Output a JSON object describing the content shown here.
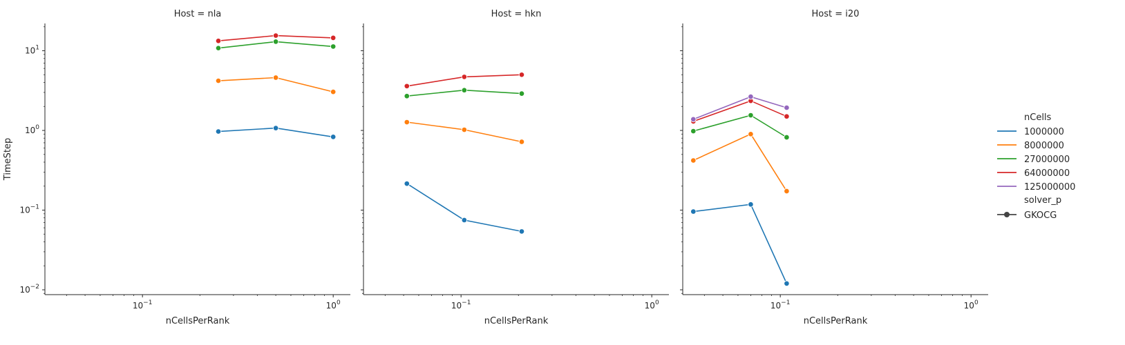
{
  "chart_data": {
    "type": "line",
    "x_scale": "log",
    "y_scale": "log",
    "xlabel": "nCellsPerRank",
    "ylabel": "TimeStep",
    "xlim": [
      0.0308,
      1.23
    ],
    "ylim": [
      0.0087,
      22.0
    ],
    "x_ticks": [
      {
        "value": 0.1,
        "base": "10",
        "exp": "−1"
      },
      {
        "value": 1,
        "base": "10",
        "exp": "0"
      }
    ],
    "y_ticks": [
      {
        "value": 0.01,
        "base": "10",
        "exp": "−2"
      },
      {
        "value": 0.1,
        "base": "10",
        "exp": "−1"
      },
      {
        "value": 1,
        "base": "10",
        "exp": "0"
      },
      {
        "value": 10,
        "base": "10",
        "exp": "1"
      }
    ],
    "legend": {
      "placement": "right",
      "hue_title": "nCells",
      "style_title": "solver_p",
      "style_entries": [
        "GKOCG"
      ]
    },
    "series_colors": {
      "1000000": "#1f77b4",
      "8000000": "#ff7f0e",
      "27000000": "#2ca02c",
      "64000000": "#d62728",
      "125000000": "#9467bd"
    },
    "panels": [
      {
        "title": "Host = nla",
        "series": [
          {
            "name": "1000000",
            "x": [
              0.25,
              0.5,
              1.0
            ],
            "y": [
              0.97,
              1.07,
              0.83
            ]
          },
          {
            "name": "8000000",
            "x": [
              0.25,
              0.5,
              1.0
            ],
            "y": [
              4.2,
              4.6,
              3.05
            ]
          },
          {
            "name": "27000000",
            "x": [
              0.25,
              0.5,
              1.0
            ],
            "y": [
              10.8,
              13.0,
              11.3
            ]
          },
          {
            "name": "64000000",
            "x": [
              0.25,
              0.5,
              1.0
            ],
            "y": [
              13.3,
              15.5,
              14.5
            ]
          }
        ]
      },
      {
        "title": "Host = hkn",
        "series": [
          {
            "name": "1000000",
            "x": [
              0.052,
              0.104,
              0.208
            ],
            "y": [
              0.215,
              0.075,
              0.054
            ]
          },
          {
            "name": "8000000",
            "x": [
              0.052,
              0.104,
              0.208
            ],
            "y": [
              1.27,
              1.02,
              0.72
            ]
          },
          {
            "name": "27000000",
            "x": [
              0.052,
              0.104,
              0.208
            ],
            "y": [
              2.7,
              3.2,
              2.9
            ]
          },
          {
            "name": "64000000",
            "x": [
              0.052,
              0.104,
              0.208
            ],
            "y": [
              3.6,
              4.7,
              5.0
            ]
          }
        ]
      },
      {
        "title": "Host = i20",
        "series": [
          {
            "name": "1000000",
            "x": [
              0.035,
              0.07,
              0.108
            ],
            "y": [
              0.096,
              0.118,
              0.012
            ]
          },
          {
            "name": "8000000",
            "x": [
              0.035,
              0.07,
              0.108
            ],
            "y": [
              0.42,
              0.9,
              0.173
            ]
          },
          {
            "name": "27000000",
            "x": [
              0.035,
              0.07,
              0.108
            ],
            "y": [
              0.98,
              1.55,
              0.82
            ]
          },
          {
            "name": "64000000",
            "x": [
              0.035,
              0.07,
              0.108
            ],
            "y": [
              1.3,
              2.35,
              1.5
            ]
          },
          {
            "name": "125000000",
            "x": [
              0.035,
              0.07,
              0.108
            ],
            "y": [
              1.38,
              2.65,
              1.93
            ]
          }
        ]
      }
    ]
  }
}
